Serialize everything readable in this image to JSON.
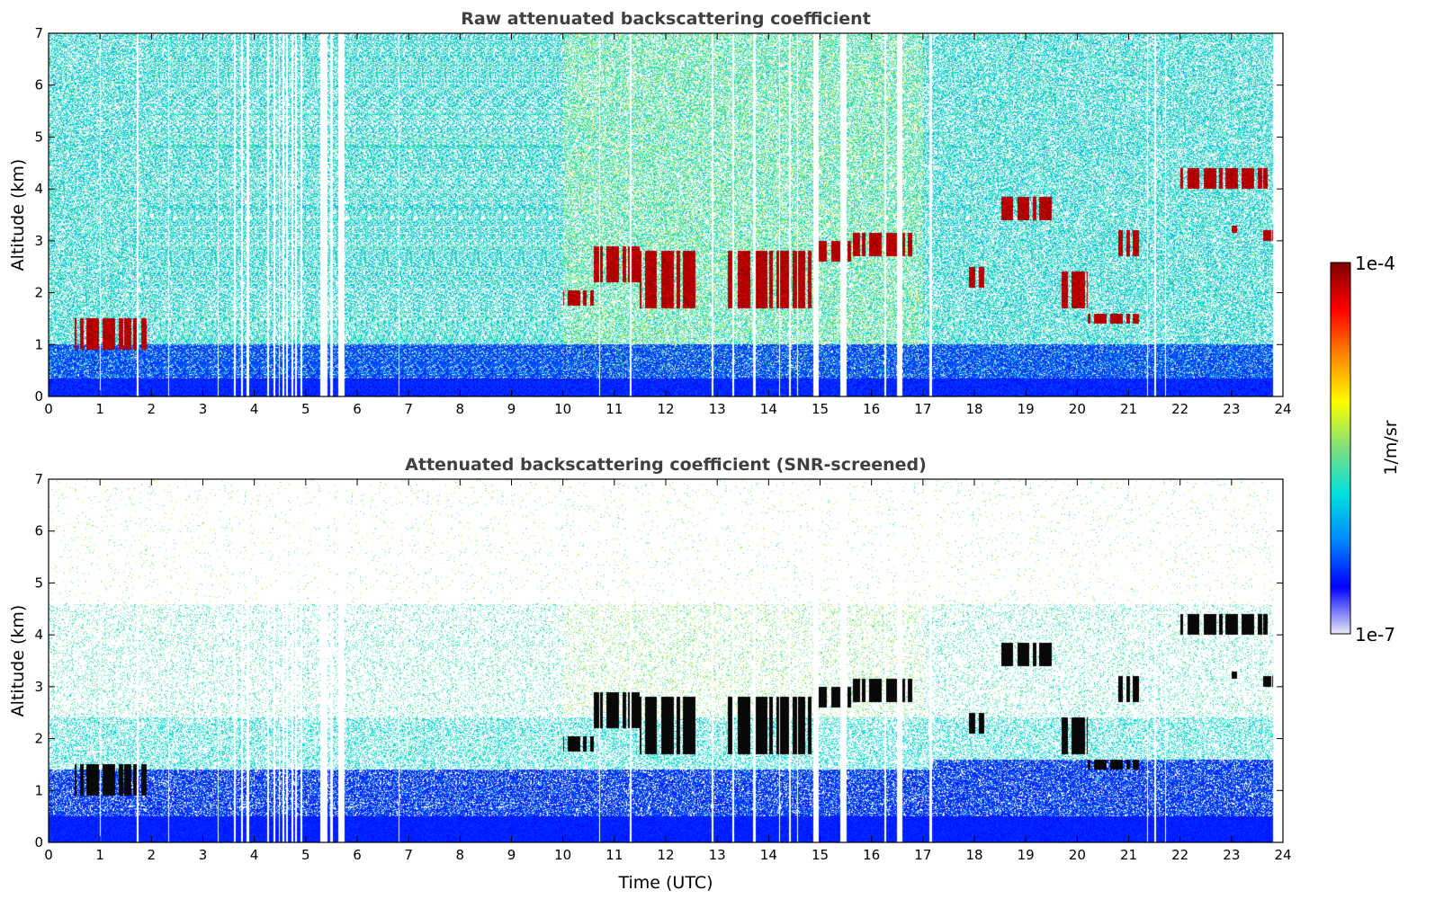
{
  "chart_data": [
    {
      "type": "heatmap",
      "title": "Raw attenuated backscattering coefficient",
      "xlabel": "",
      "ylabel": "Altitude (km)",
      "xlim": [
        0,
        24
      ],
      "ylim": [
        0,
        7
      ],
      "xticks": [
        "0",
        "1",
        "2",
        "3",
        "4",
        "5",
        "6",
        "7",
        "8",
        "9",
        "10",
        "11",
        "12",
        "13",
        "14",
        "15",
        "16",
        "17",
        "18",
        "19",
        "20",
        "21",
        "22",
        "23",
        "24"
      ],
      "yticks": [
        "0",
        "1",
        "2",
        "3",
        "4",
        "5",
        "6",
        "7"
      ],
      "data_gaps_utc": [
        [
          1.0,
          1.02
        ],
        [
          1.72,
          1.75
        ],
        [
          2.33,
          2.35
        ],
        [
          3.28,
          3.3
        ],
        [
          3.6,
          3.63
        ],
        [
          3.75,
          3.78
        ],
        [
          3.85,
          3.9
        ],
        [
          4.25,
          4.28
        ],
        [
          4.38,
          4.4
        ],
        [
          4.47,
          4.5
        ],
        [
          4.55,
          4.58
        ],
        [
          4.62,
          4.65
        ],
        [
          4.72,
          4.75
        ],
        [
          4.8,
          4.83
        ],
        [
          4.9,
          4.93
        ],
        [
          5.28,
          5.42
        ],
        [
          5.48,
          5.52
        ],
        [
          5.63,
          5.75
        ],
        [
          6.8,
          6.83
        ],
        [
          10.7,
          10.73
        ],
        [
          11.3,
          11.33
        ],
        [
          12.9,
          12.93
        ],
        [
          13.3,
          13.33
        ],
        [
          13.7,
          13.75
        ],
        [
          14.2,
          14.23
        ],
        [
          14.4,
          14.43
        ],
        [
          14.55,
          14.58
        ],
        [
          14.87,
          14.98
        ],
        [
          15.4,
          15.52
        ],
        [
          16.25,
          16.28
        ],
        [
          16.5,
          16.6
        ],
        [
          17.12,
          17.17
        ],
        [
          21.35,
          21.38
        ],
        [
          21.5,
          21.53
        ],
        [
          21.7,
          21.73
        ],
        [
          23.8,
          24.0
        ]
      ],
      "cloud_layers": [
        {
          "t0": 0.5,
          "t1": 1.9,
          "z0": 0.9,
          "z1": 1.5
        },
        {
          "t0": 10.0,
          "t1": 10.6,
          "z0": 1.75,
          "z1": 2.05
        },
        {
          "t0": 10.6,
          "t1": 11.5,
          "z0": 2.2,
          "z1": 2.9
        },
        {
          "t0": 11.5,
          "t1": 12.6,
          "z0": 1.7,
          "z1": 2.8
        },
        {
          "t0": 13.2,
          "t1": 14.9,
          "z0": 1.7,
          "z1": 2.8
        },
        {
          "t0": 14.9,
          "t1": 15.6,
          "z0": 2.6,
          "z1": 3.0
        },
        {
          "t0": 15.6,
          "t1": 16.8,
          "z0": 2.7,
          "z1": 3.15
        },
        {
          "t0": 17.9,
          "t1": 18.2,
          "z0": 2.1,
          "z1": 2.5
        },
        {
          "t0": 18.5,
          "t1": 19.5,
          "z0": 3.4,
          "z1": 3.85
        },
        {
          "t0": 19.7,
          "t1": 20.2,
          "z0": 1.7,
          "z1": 2.4
        },
        {
          "t0": 20.2,
          "t1": 21.2,
          "z0": 1.4,
          "z1": 1.6
        },
        {
          "t0": 20.8,
          "t1": 21.2,
          "z0": 2.7,
          "z1": 3.2
        },
        {
          "t0": 22.0,
          "t1": 23.7,
          "z0": 4.0,
          "z1": 4.4
        },
        {
          "t0": 23.0,
          "t1": 23.1,
          "z0": 3.15,
          "z1": 3.3
        },
        {
          "t0": 23.6,
          "t1": 23.8,
          "z0": 3.0,
          "z1": 3.2
        }
      ]
    },
    {
      "type": "heatmap",
      "title": "Attenuated backscattering coefficient (SNR-screened)",
      "xlabel": "Time (UTC)",
      "ylabel": "Altitude (km)",
      "xlim": [
        0,
        24
      ],
      "ylim": [
        0,
        7
      ],
      "xticks": [
        "0",
        "1",
        "2",
        "3",
        "4",
        "5",
        "6",
        "7",
        "8",
        "9",
        "10",
        "11",
        "12",
        "13",
        "14",
        "15",
        "16",
        "17",
        "18",
        "19",
        "20",
        "21",
        "22",
        "23",
        "24"
      ],
      "yticks": [
        "0",
        "1",
        "2",
        "3",
        "4",
        "5",
        "6",
        "7"
      ],
      "screened": true
    }
  ],
  "colorbar": {
    "label": "1/m/sr",
    "max_label": "1e-4",
    "min_label": "1e-7",
    "min_value": 1e-07,
    "max_value": 0.0001,
    "scale": "log",
    "colors": [
      "#e8e8f4",
      "#0000ff",
      "#0088ff",
      "#00e0e0",
      "#7fe07f",
      "#ffff00",
      "#ff8800",
      "#ff0000",
      "#800000"
    ]
  }
}
